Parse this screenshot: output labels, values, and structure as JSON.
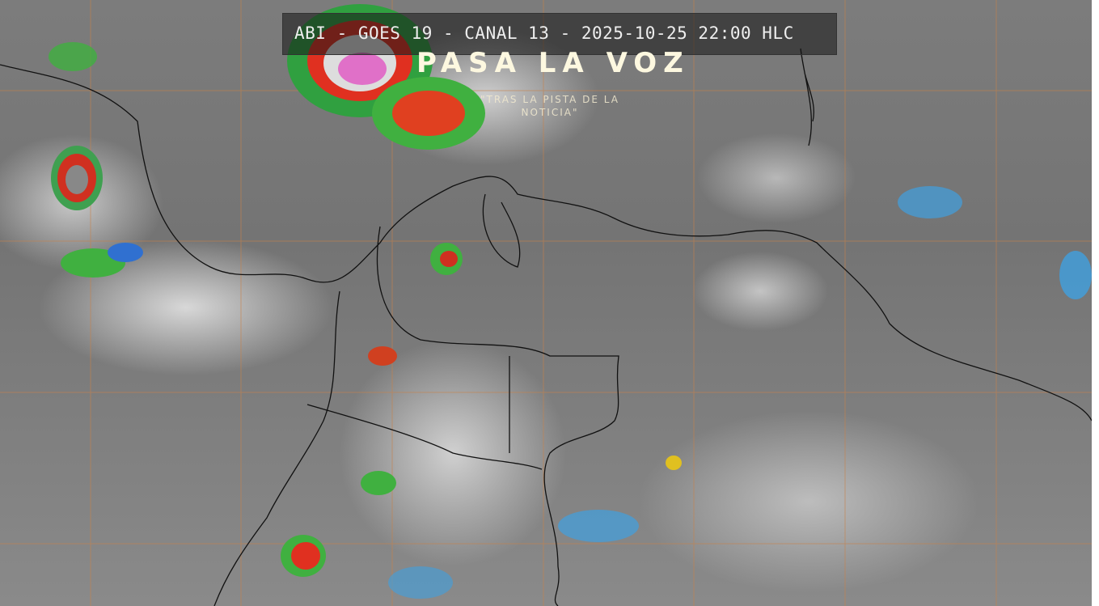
{
  "image": {
    "title": "ABI - GOES 19 - CANAL 13 - 2025-10-25 22:00 HLC",
    "watermark": {
      "main": "PASA LA VOZ",
      "subtitle": "\"TRAS LA PISTA DE LA NOTICIA\""
    },
    "colors": {
      "grid": "#c8824a",
      "borders": "#111111",
      "cold_cloud_scale": [
        "#3fa0e0",
        "#2040c0",
        "#40c040",
        "#f0e020",
        "#f03020",
        "#602020",
        "#f080d0"
      ]
    }
  }
}
